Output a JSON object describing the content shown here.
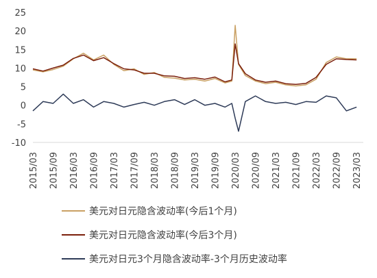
{
  "chart_data": {
    "type": "line",
    "title": "",
    "xlabel": "",
    "ylabel": "",
    "ylim": [
      -10,
      25
    ],
    "yticks": [
      -10,
      -5,
      0,
      5,
      10,
      15,
      20,
      25
    ],
    "grid": false,
    "legend_position": "bottom",
    "x_tick_labels": [
      "2015/03",
      "2015/09",
      "2016/03",
      "2016/09",
      "2017/03",
      "2017/09",
      "2018/03",
      "2018/09",
      "2019/03",
      "2019/09",
      "2020/03",
      "2020/09",
      "2021/03",
      "2021/09",
      "2022/03",
      "2022/09",
      "2023/03"
    ],
    "x": [
      "2015/03",
      "2015/06",
      "2015/09",
      "2015/12",
      "2016/03",
      "2016/06",
      "2016/09",
      "2016/12",
      "2017/03",
      "2017/06",
      "2017/09",
      "2017/12",
      "2018/03",
      "2018/06",
      "2018/09",
      "2018/12",
      "2019/03",
      "2019/06",
      "2019/09",
      "2019/12",
      "2020/02",
      "2020/03",
      "2020/04",
      "2020/06",
      "2020/09",
      "2020/12",
      "2021/03",
      "2021/06",
      "2021/09",
      "2021/12",
      "2022/03",
      "2022/06",
      "2022/09",
      "2022/12",
      "2023/03"
    ],
    "series": [
      {
        "name": "美元对日元隐含波动率(今后1个月)",
        "color": "#C9A063",
        "values": [
          9.5,
          9.0,
          9.6,
          10.5,
          12.5,
          14.0,
          12.2,
          13.5,
          11.0,
          9.3,
          9.8,
          8.3,
          8.8,
          7.5,
          7.3,
          6.8,
          7.0,
          6.5,
          7.2,
          6.0,
          6.5,
          21.5,
          11.0,
          8.0,
          6.5,
          5.8,
          6.2,
          5.5,
          5.2,
          5.5,
          7.0,
          11.5,
          13.0,
          12.5,
          12.5
        ]
      },
      {
        "name": "美元对日元隐含波动率(今后3个月)",
        "color": "#7A1E0A",
        "values": [
          9.8,
          9.2,
          10.0,
          10.8,
          12.6,
          13.5,
          12.0,
          12.8,
          11.2,
          9.8,
          9.5,
          8.6,
          8.6,
          7.9,
          7.8,
          7.2,
          7.4,
          7.0,
          7.6,
          6.3,
          6.8,
          16.5,
          11.2,
          8.5,
          6.8,
          6.2,
          6.5,
          5.8,
          5.6,
          5.9,
          7.5,
          11.0,
          12.5,
          12.3,
          12.2
        ]
      },
      {
        "name": "美元对日元3个月隐含波动率-3个月历史波动率",
        "color": "#2D3A57",
        "values": [
          -1.5,
          1.0,
          0.5,
          3.0,
          0.5,
          1.5,
          -0.5,
          1.0,
          0.5,
          -0.5,
          0.2,
          0.8,
          0.0,
          1.0,
          1.5,
          0.2,
          1.5,
          0.0,
          0.5,
          -0.5,
          0.5,
          -3.5,
          -7.0,
          1.0,
          2.5,
          1.0,
          0.5,
          0.8,
          0.2,
          1.0,
          0.8,
          2.5,
          2.0,
          -1.5,
          -0.5
        ]
      }
    ]
  }
}
